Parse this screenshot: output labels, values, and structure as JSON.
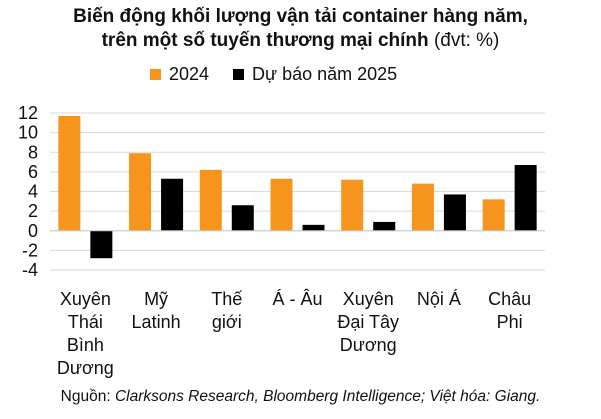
{
  "chart_data": {
    "type": "bar",
    "title_line1": "Biến động khối lượng vận tải container hàng năm,",
    "title_line2": "trên một số tuyến thương mại chính",
    "title_unit": "(đvt: %)",
    "categories": [
      [
        "Xuyên",
        "Thái",
        "Bình",
        "Dương"
      ],
      [
        "Mỹ",
        "Latinh"
      ],
      [
        "Thế",
        "giới"
      ],
      [
        "Á - Âu"
      ],
      [
        "Xuyên",
        "Đại Tây",
        "Dương"
      ],
      [
        "Nội Á"
      ],
      [
        "Châu",
        "Phi"
      ]
    ],
    "series": [
      {
        "name": "2024",
        "color": "#F7941D",
        "values": [
          11.7,
          7.9,
          6.2,
          5.3,
          5.2,
          4.8,
          3.2
        ]
      },
      {
        "name": "Dự báo năm 2025",
        "color": "#000000",
        "values": [
          -2.8,
          5.3,
          2.6,
          0.6,
          0.9,
          3.7,
          6.7
        ]
      }
    ],
    "yticks": [
      12,
      10,
      8,
      6,
      4,
      2,
      0,
      -2,
      -4
    ],
    "ylim": [
      -4,
      12
    ],
    "grid": true,
    "legend_position": "top"
  },
  "source": {
    "prefix": "Nguồn: ",
    "text": "Clarksons Research, Bloomberg Intelligence; Việt hóa: Giang."
  }
}
